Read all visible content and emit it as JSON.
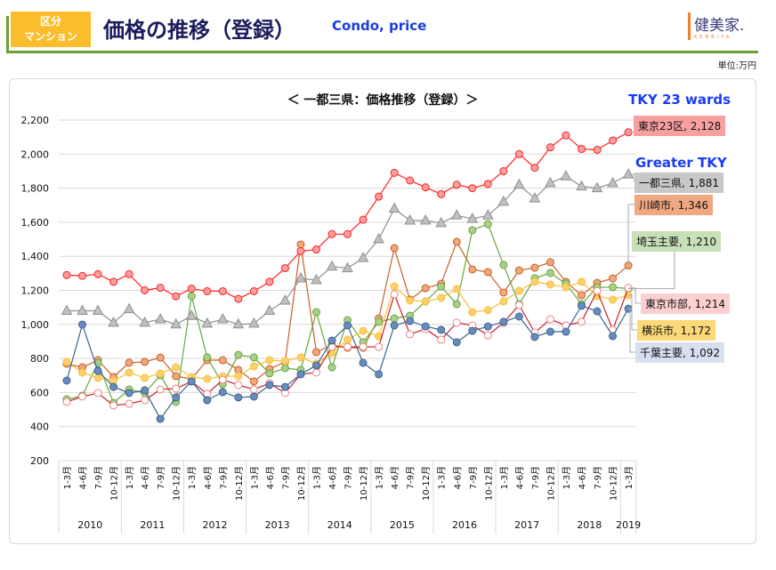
{
  "header": {
    "badge_line1": "区分",
    "badge_line2": "マンション",
    "title": "価格の推移（登録）",
    "subtitle": "Condo, price",
    "logo_text": "健美家.",
    "logo_sub": "KENBIYA",
    "unit": "単位:万円"
  },
  "annotations": {
    "tky23": "TKY 23 wards",
    "greater": "Greater TKY"
  },
  "chart_data": {
    "type": "line",
    "title": "＜ 一都三県：価格推移（登録）＞",
    "xlabel": "",
    "ylabel": "",
    "ylim": [
      200,
      2200
    ],
    "yticks": [
      "200",
      "400",
      "600",
      "800",
      "1,000",
      "1,200",
      "1,400",
      "1,600",
      "1,800",
      "2,000",
      "2,200"
    ],
    "ytick_values": [
      200,
      400,
      600,
      800,
      1000,
      1200,
      1400,
      1600,
      1800,
      2000,
      2200
    ],
    "grid": true,
    "quarters": [
      "1-3月",
      "4-6月",
      "7-9月",
      "10-12月"
    ],
    "years": [
      "2010",
      "2011",
      "2012",
      "2013",
      "2014",
      "2015",
      "2016",
      "2017",
      "2018",
      "2019"
    ],
    "series": [
      {
        "name": "東京23区",
        "label": "東京23区, 2,128",
        "color": "#ff2020",
        "fill": "#f8a0a0",
        "marker": "circle",
        "values": [
          1290,
          1285,
          1295,
          1250,
          1295,
          1200,
          1215,
          1165,
          1210,
          1195,
          1195,
          1150,
          1195,
          1250,
          1330,
          1430,
          1440,
          1530,
          1530,
          1615,
          1750,
          1890,
          1845,
          1805,
          1765,
          1820,
          1800,
          1825,
          1900,
          2000,
          1920,
          2040,
          2110,
          2030,
          2025,
          2080,
          2128
        ]
      },
      {
        "name": "一都三県",
        "label": "一都三県, 1,881",
        "color": "#909090",
        "fill": "#c0c0c0",
        "marker": "triangle",
        "values": [
          1080,
          1080,
          1080,
          1010,
          1090,
          1010,
          1030,
          1000,
          1050,
          1005,
          1030,
          1000,
          1005,
          1080,
          1140,
          1270,
          1260,
          1340,
          1330,
          1390,
          1500,
          1680,
          1610,
          1610,
          1595,
          1640,
          1620,
          1640,
          1720,
          1820,
          1740,
          1830,
          1870,
          1810,
          1800,
          1830,
          1881
        ]
      },
      {
        "name": "川崎市",
        "label": "川崎市, 1,346",
        "color": "#c8602a",
        "fill": "#f0a878",
        "marker": "circle",
        "values": [
          769,
          748,
          790,
          691,
          775,
          780,
          805,
          696,
          680,
          790,
          790,
          733,
          665,
          738,
          780,
          1469,
          837,
          879,
          863,
          863,
          1035,
          1448,
          1145,
          1213,
          1239,
          1485,
          1323,
          1307,
          1187,
          1317,
          1333,
          1365,
          1250,
          1171,
          1244,
          1270,
          1346
        ]
      },
      {
        "name": "埼玉主要",
        "label": "埼玉主要, 1,210",
        "color": "#6aa640",
        "fill": "#a8d08a",
        "marker": "circle",
        "values": [
          560,
          581,
          774,
          539,
          618,
          597,
          701,
          545,
          1166,
          806,
          649,
          821,
          806,
          712,
          743,
          733,
          1072,
          748,
          1025,
          895,
          1015,
          1035,
          1051,
          1135,
          1223,
          1119,
          1553,
          1589,
          1349,
          1119,
          1271,
          1302,
          1239,
          1119,
          1218,
          1218,
          1210
        ]
      },
      {
        "name": "東京市部",
        "label": "東京市部, 1,214",
        "color": "#c8202a",
        "fill": "#ffffff",
        "edge": "#f08080",
        "marker": "circle",
        "values": [
          545,
          576,
          597,
          524,
          534,
          555,
          618,
          623,
          665,
          592,
          675,
          644,
          618,
          654,
          597,
          707,
          717,
          868,
          868,
          868,
          868,
          1177,
          942,
          973,
          910,
          1010,
          994,
          936,
          1010,
          1114,
          952,
          1030,
          994,
          1015,
          1197,
          968,
          1214
        ]
      },
      {
        "name": "横浜市",
        "label": "横浜市, 1,172",
        "color": "#f8c030",
        "fill": "#fcd070",
        "marker": "circle",
        "values": [
          780,
          717,
          686,
          670,
          717,
          686,
          712,
          748,
          691,
          680,
          696,
          696,
          754,
          790,
          785,
          806,
          769,
          832,
          910,
          962,
          931,
          1223,
          1140,
          1135,
          1156,
          1208,
          1072,
          1083,
          1135,
          1197,
          1250,
          1234,
          1218,
          1250,
          1166,
          1145,
          1172
        ]
      },
      {
        "name": "千葉主要",
        "label": "千葉主要, 1,092",
        "color": "#3a6494",
        "fill": "#6a8cbc",
        "marker": "circle",
        "values": [
          670,
          999,
          727,
          633,
          597,
          613,
          445,
          571,
          665,
          555,
          602,
          571,
          576,
          644,
          633,
          707,
          759,
          905,
          994,
          774,
          707,
          994,
          1020,
          988,
          968,
          895,
          962,
          988,
          1015,
          1046,
          926,
          957,
          957,
          1109,
          1077,
          931,
          1092
        ]
      }
    ]
  }
}
